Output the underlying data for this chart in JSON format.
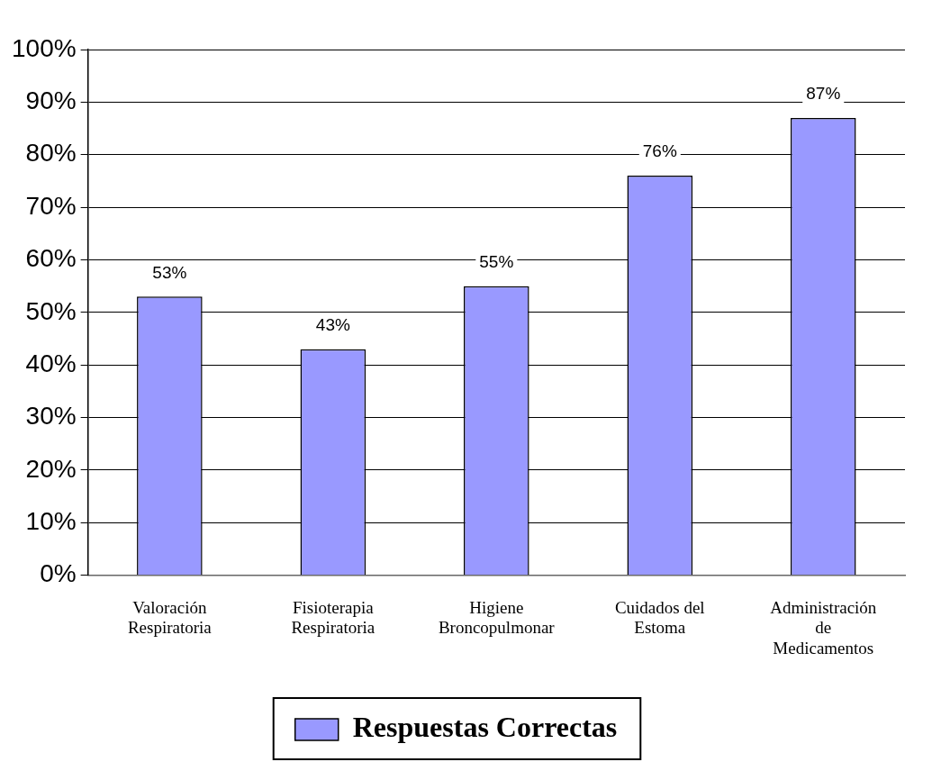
{
  "chart_data": {
    "type": "bar",
    "categories": [
      "Valoración Respiratoria",
      "Fisioterapia Respiratoria",
      "Higiene Broncopulmonar",
      "Cuidados del Estoma",
      "Administración de Medicamentos"
    ],
    "series": [
      {
        "name": "Respuestas Correctas",
        "color": "#9999ff",
        "values": [
          53,
          43,
          55,
          76,
          87
        ],
        "value_labels": [
          "53%",
          "43%",
          "55%",
          "76%",
          "87%"
        ]
      }
    ],
    "ylim": [
      0,
      100
    ],
    "yticks": [
      {
        "value": 0,
        "label": "0%"
      },
      {
        "value": 10,
        "label": "10%"
      },
      {
        "value": 20,
        "label": "20%"
      },
      {
        "value": 30,
        "label": "30%"
      },
      {
        "value": 40,
        "label": "40%"
      },
      {
        "value": 50,
        "label": "50%"
      },
      {
        "value": 60,
        "label": "60%"
      },
      {
        "value": 70,
        "label": "70%"
      },
      {
        "value": 80,
        "label": "80%"
      },
      {
        "value": 90,
        "label": "90%"
      },
      {
        "value": 100,
        "label": "100%"
      }
    ],
    "grid": "y",
    "legend": "bottom"
  }
}
